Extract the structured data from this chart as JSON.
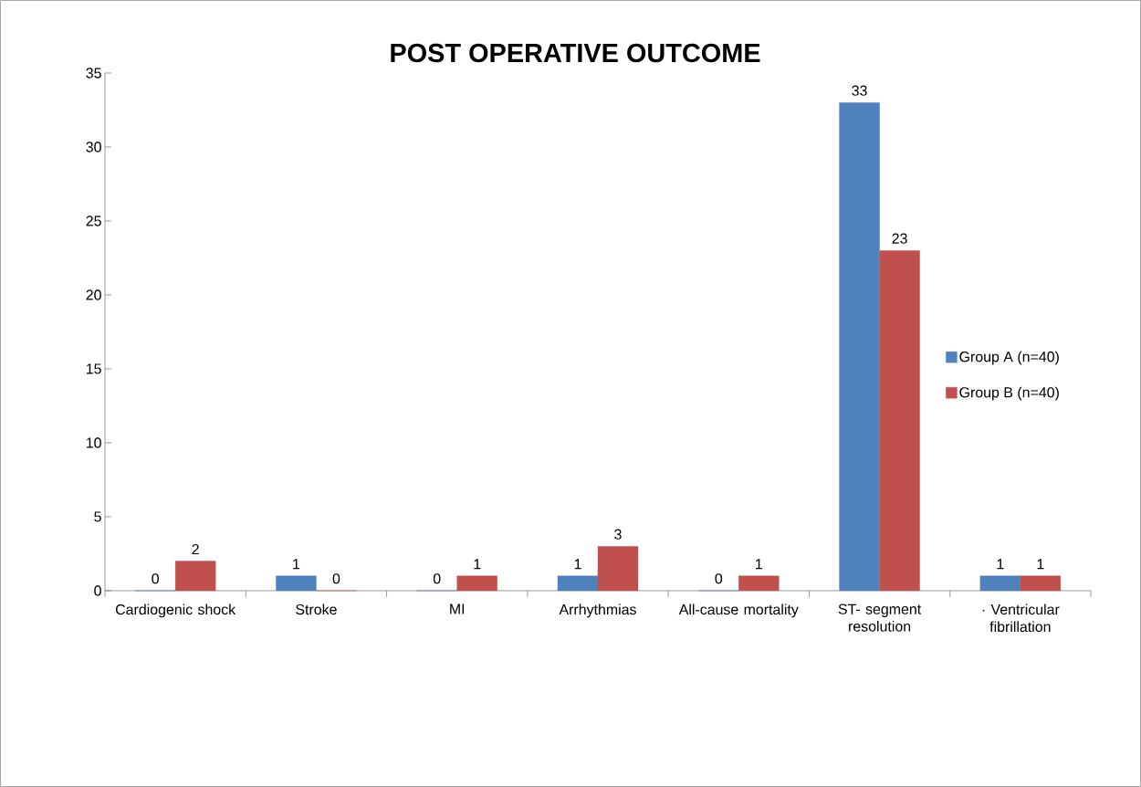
{
  "chart_data": {
    "type": "bar",
    "title": "POST OPERATIVE OUTCOME",
    "categories": [
      "Cardiogenic shock",
      "Stroke",
      "MI",
      "Arrhythmias",
      "All-cause mortality",
      "ST- segment resolution",
      "· Ventricular fibrillation"
    ],
    "series": [
      {
        "name": "Group A (n=40)",
        "color": "#4f81bd",
        "values": [
          0,
          1,
          0,
          1,
          0,
          33,
          1
        ]
      },
      {
        "name": "Group B (n=40)",
        "color": "#c0504d",
        "values": [
          2,
          0,
          1,
          3,
          1,
          23,
          1
        ]
      }
    ],
    "ylim": [
      0,
      35
    ],
    "yticks": [
      0,
      5,
      10,
      15,
      20,
      25,
      30,
      35
    ],
    "data_labels": true,
    "legend": "right",
    "grid": false
  }
}
